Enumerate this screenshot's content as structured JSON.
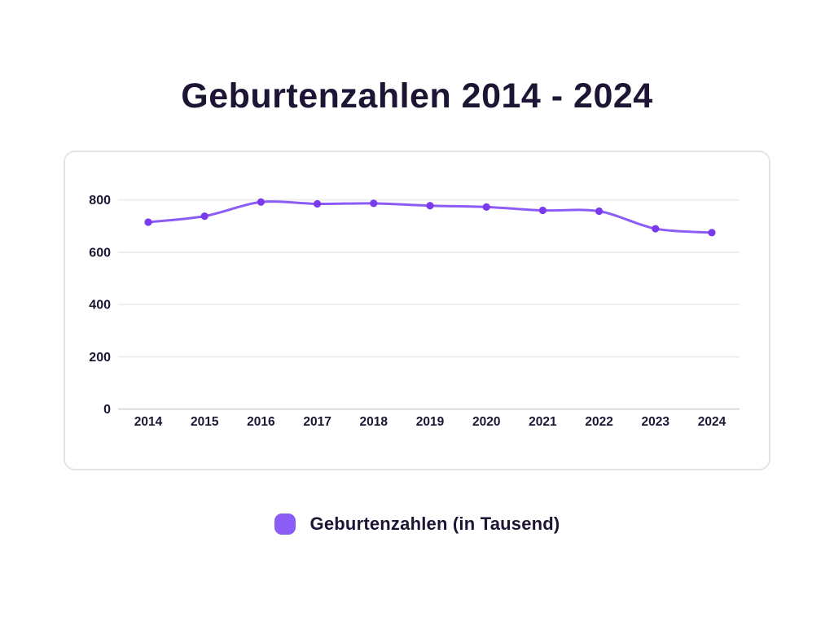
{
  "page": {
    "title": "Geburtenzahlen 2014 - 2024"
  },
  "legend": {
    "label": "Geburtenzahlen (in Tausend)",
    "marker_color": "#8b5cf6"
  },
  "colors": {
    "text_dark": "#1e1535",
    "line": "#8b5cf6",
    "point": "#7c3aed",
    "grid": "#ededed",
    "axis": "#d9d9d9",
    "card_border": "#e4e4e7",
    "background": "#ffffff"
  },
  "chart_data": {
    "type": "line",
    "title": "Geburtenzahlen 2014 - 2024",
    "categories": [
      "2014",
      "2015",
      "2016",
      "2017",
      "2018",
      "2019",
      "2020",
      "2021",
      "2022",
      "2023",
      "2024"
    ],
    "series": [
      {
        "name": "Geburtenzahlen (in Tausend)",
        "values": [
          715,
          738,
          792,
          785,
          787,
          778,
          773,
          760,
          757,
          690,
          675
        ]
      }
    ],
    "xlabel": "",
    "ylabel": "",
    "ylim": [
      0,
      800
    ],
    "yticks": [
      0,
      200,
      400,
      600,
      800
    ],
    "grid": true,
    "legend_position": "bottom",
    "curve": "smooth"
  }
}
